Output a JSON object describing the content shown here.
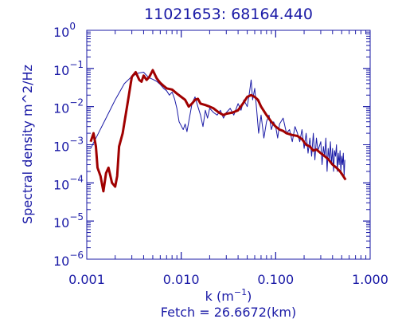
{
  "chart_data": {
    "type": "line",
    "title": "11021653: 68164.440",
    "xlabel_prefix": "k (m",
    "xlabel_exp": "−1",
    "xlabel_suffix": ")",
    "ylabel": "Spectral density m^2/Hz",
    "footer": "Fetch = 26.6672(km)",
    "xscale": "log",
    "yscale": "log",
    "xlim": [
      0.001,
      1.0
    ],
    "ylim": [
      1e-06,
      1.0
    ],
    "grid": false,
    "x_ticks": [
      {
        "value": 0.001,
        "label": "0.001"
      },
      {
        "value": 0.01,
        "label": "0.010"
      },
      {
        "value": 0.1,
        "label": "0.100"
      },
      {
        "value": 1.0,
        "label": "1.000"
      }
    ],
    "y_ticks": [
      {
        "value": 1e-06,
        "base": "10",
        "exp": "−6"
      },
      {
        "value": 1e-05,
        "base": "10",
        "exp": "−5"
      },
      {
        "value": 0.0001,
        "base": "10",
        "exp": "−4"
      },
      {
        "value": 0.001,
        "base": "10",
        "exp": "−3"
      },
      {
        "value": 0.01,
        "base": "10",
        "exp": "−2"
      },
      {
        "value": 0.1,
        "base": "10",
        "exp": "−1"
      },
      {
        "value": 1.0,
        "base": "10",
        "exp": "0"
      }
    ],
    "colors": {
      "axis": "#1a1aa6",
      "thin": "#1a1aa6",
      "thick": "#a00000"
    },
    "series": [
      {
        "style": "thin",
        "points": [
          [
            0.0011,
            0.0008
          ],
          [
            0.0013,
            0.0018
          ],
          [
            0.0016,
            0.005
          ],
          [
            0.002,
            0.015
          ],
          [
            0.0025,
            0.04
          ],
          [
            0.003,
            0.062
          ],
          [
            0.0035,
            0.075
          ],
          [
            0.004,
            0.08
          ],
          [
            0.0045,
            0.058
          ],
          [
            0.005,
            0.052
          ],
          [
            0.0055,
            0.046
          ],
          [
            0.006,
            0.038
          ],
          [
            0.0065,
            0.03
          ],
          [
            0.007,
            0.026
          ],
          [
            0.0075,
            0.02
          ],
          [
            0.008,
            0.024
          ],
          [
            0.0085,
            0.016
          ],
          [
            0.009,
            0.009
          ],
          [
            0.0095,
            0.004
          ],
          [
            0.0105,
            0.0025
          ],
          [
            0.011,
            0.0035
          ],
          [
            0.0115,
            0.0022
          ],
          [
            0.012,
            0.004
          ],
          [
            0.0125,
            0.007
          ],
          [
            0.013,
            0.012
          ],
          [
            0.014,
            0.018
          ],
          [
            0.015,
            0.01
          ],
          [
            0.016,
            0.006
          ],
          [
            0.017,
            0.003
          ],
          [
            0.018,
            0.008
          ],
          [
            0.019,
            0.005
          ],
          [
            0.02,
            0.009
          ],
          [
            0.022,
            0.007
          ],
          [
            0.024,
            0.006
          ],
          [
            0.026,
            0.008
          ],
          [
            0.028,
            0.005
          ],
          [
            0.03,
            0.007
          ],
          [
            0.033,
            0.009
          ],
          [
            0.036,
            0.006
          ],
          [
            0.04,
            0.012
          ],
          [
            0.043,
            0.008
          ],
          [
            0.046,
            0.015
          ],
          [
            0.05,
            0.01
          ],
          [
            0.053,
            0.025
          ],
          [
            0.055,
            0.05
          ],
          [
            0.057,
            0.015
          ],
          [
            0.06,
            0.03
          ],
          [
            0.063,
            0.008
          ],
          [
            0.066,
            0.002
          ],
          [
            0.07,
            0.006
          ],
          [
            0.075,
            0.0015
          ],
          [
            0.08,
            0.004
          ],
          [
            0.085,
            0.006
          ],
          [
            0.09,
            0.0025
          ],
          [
            0.095,
            0.004
          ],
          [
            0.1,
            0.003
          ],
          [
            0.105,
            0.0015
          ],
          [
            0.11,
            0.0035
          ],
          [
            0.12,
            0.005
          ],
          [
            0.13,
            0.002
          ],
          [
            0.14,
            0.0025
          ],
          [
            0.15,
            0.0012
          ],
          [
            0.16,
            0.003
          ],
          [
            0.17,
            0.002
          ],
          [
            0.18,
            0.0012
          ],
          [
            0.19,
            0.0025
          ],
          [
            0.2,
            0.0008
          ],
          [
            0.21,
            0.002
          ],
          [
            0.22,
            0.0006
          ],
          [
            0.23,
            0.0015
          ],
          [
            0.24,
            0.0005
          ],
          [
            0.25,
            0.002
          ],
          [
            0.26,
            0.0004
          ],
          [
            0.27,
            0.0015
          ],
          [
            0.28,
            0.0007
          ],
          [
            0.3,
            0.0012
          ],
          [
            0.31,
            0.0003
          ],
          [
            0.32,
            0.0009
          ],
          [
            0.33,
            0.0005
          ],
          [
            0.34,
            0.0015
          ],
          [
            0.35,
            0.0002
          ],
          [
            0.36,
            0.0008
          ],
          [
            0.37,
            0.0004
          ],
          [
            0.38,
            0.0012
          ],
          [
            0.39,
            0.0003
          ],
          [
            0.4,
            0.0008
          ],
          [
            0.41,
            0.0002
          ],
          [
            0.42,
            0.0007
          ],
          [
            0.43,
            0.0005
          ],
          [
            0.44,
            0.001
          ],
          [
            0.45,
            0.0002
          ],
          [
            0.46,
            0.0006
          ],
          [
            0.47,
            0.0003
          ],
          [
            0.48,
            0.0007
          ],
          [
            0.49,
            0.0002
          ],
          [
            0.5,
            0.0005
          ],
          [
            0.51,
            0.0003
          ],
          [
            0.52,
            0.0006
          ],
          [
            0.53,
            0.00015
          ],
          [
            0.54,
            0.0004
          ]
        ]
      },
      {
        "style": "thick",
        "points": [
          [
            0.0011,
            0.0012
          ],
          [
            0.00118,
            0.002
          ],
          [
            0.00125,
            0.0009
          ],
          [
            0.0013,
            0.00025
          ],
          [
            0.0014,
            0.00015
          ],
          [
            0.0015,
            6e-05
          ],
          [
            0.0016,
            0.00018
          ],
          [
            0.0017,
            0.00025
          ],
          [
            0.00185,
            0.0001
          ],
          [
            0.002,
            8e-05
          ],
          [
            0.0021,
            0.00015
          ],
          [
            0.0022,
            0.0009
          ],
          [
            0.0024,
            0.002
          ],
          [
            0.0027,
            0.012
          ],
          [
            0.003,
            0.06
          ],
          [
            0.0033,
            0.08
          ],
          [
            0.0036,
            0.05
          ],
          [
            0.0038,
            0.045
          ],
          [
            0.004,
            0.065
          ],
          [
            0.0043,
            0.05
          ],
          [
            0.0046,
            0.06
          ],
          [
            0.005,
            0.09
          ],
          [
            0.0055,
            0.055
          ],
          [
            0.006,
            0.042
          ],
          [
            0.0065,
            0.035
          ],
          [
            0.007,
            0.03
          ],
          [
            0.008,
            0.028
          ],
          [
            0.009,
            0.022
          ],
          [
            0.01,
            0.018
          ],
          [
            0.011,
            0.015
          ],
          [
            0.012,
            0.01
          ],
          [
            0.013,
            0.012
          ],
          [
            0.014,
            0.015
          ],
          [
            0.015,
            0.016
          ],
          [
            0.016,
            0.012
          ],
          [
            0.018,
            0.011
          ],
          [
            0.02,
            0.01
          ],
          [
            0.022,
            0.009
          ],
          [
            0.025,
            0.007
          ],
          [
            0.028,
            0.006
          ],
          [
            0.03,
            0.0065
          ],
          [
            0.035,
            0.007
          ],
          [
            0.04,
            0.008
          ],
          [
            0.045,
            0.012
          ],
          [
            0.05,
            0.018
          ],
          [
            0.055,
            0.02
          ],
          [
            0.06,
            0.018
          ],
          [
            0.065,
            0.015
          ],
          [
            0.07,
            0.01
          ],
          [
            0.08,
            0.006
          ],
          [
            0.09,
            0.004
          ],
          [
            0.1,
            0.003
          ],
          [
            0.11,
            0.0025
          ],
          [
            0.12,
            0.0023
          ],
          [
            0.13,
            0.002
          ],
          [
            0.15,
            0.0018
          ],
          [
            0.17,
            0.0017
          ],
          [
            0.19,
            0.0014
          ],
          [
            0.21,
            0.001
          ],
          [
            0.23,
            0.0009
          ],
          [
            0.25,
            0.0007
          ],
          [
            0.27,
            0.00075
          ],
          [
            0.3,
            0.0006
          ],
          [
            0.33,
            0.0005
          ],
          [
            0.36,
            0.00042
          ],
          [
            0.4,
            0.0003
          ],
          [
            0.44,
            0.00025
          ],
          [
            0.48,
            0.0002
          ],
          [
            0.52,
            0.00015
          ],
          [
            0.55,
            0.00012
          ]
        ]
      }
    ]
  }
}
